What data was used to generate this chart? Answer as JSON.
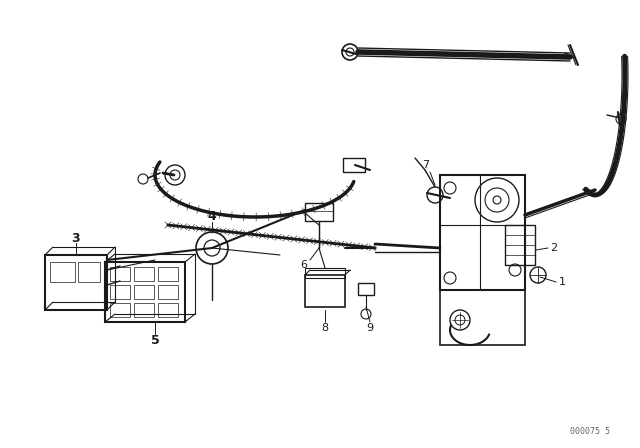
{
  "bg_color": "#ffffff",
  "lc": "#1a1a1a",
  "watermark": "000075 5",
  "figsize": [
    6.4,
    4.48
  ],
  "dpi": 100
}
